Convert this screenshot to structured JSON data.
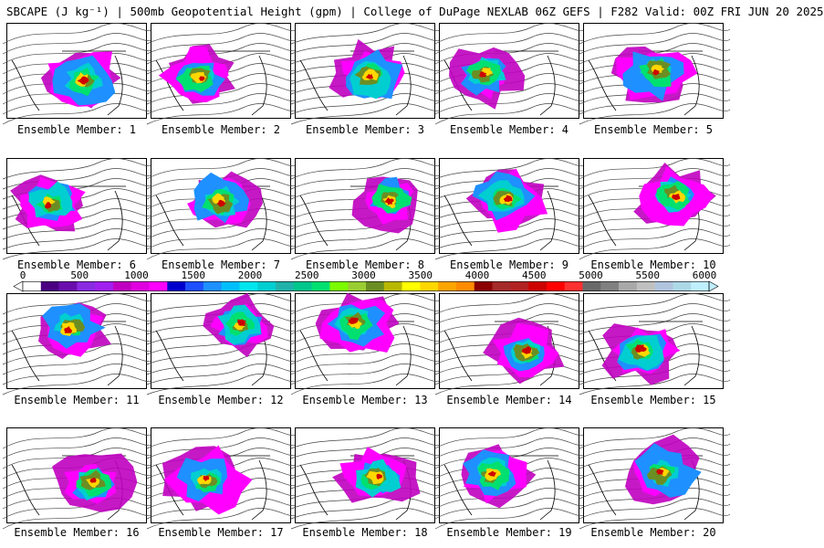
{
  "title": "SBCAPE (J kg⁻¹) | 500mb Geopotential Height (gpm) | College of DuPage NEXLAB 06Z GEFS | F282 Valid: 00Z FRI JUN 20 2025",
  "colorbar": {
    "ticks": [
      "0",
      "500",
      "1000",
      "1500",
      "2000",
      "2500",
      "3000",
      "3500",
      "4000",
      "4500",
      "5000",
      "5500",
      "6000"
    ],
    "colors": [
      "#ffffff",
      "#4b0082",
      "#6a0dad",
      "#8a2be2",
      "#a020f0",
      "#c000c0",
      "#e000e0",
      "#ff00ff",
      "#0000cd",
      "#1e50ff",
      "#1e90ff",
      "#00bfff",
      "#00e5ee",
      "#00ced1",
      "#20b2aa",
      "#00c78c",
      "#00e070",
      "#7cfc00",
      "#9acd32",
      "#6b8e23",
      "#b8b800",
      "#ffff00",
      "#ffd700",
      "#ffa500",
      "#ff8c00",
      "#8b0000",
      "#a52a2a",
      "#b22222",
      "#cd0000",
      "#ff0000",
      "#ff3030",
      "#696969",
      "#808080",
      "#a9a9a9",
      "#c0c0c0",
      "#b0c4de",
      "#add8e6",
      "#bfefff"
    ]
  },
  "panels": [
    {
      "label": "Ensemble Member: 1"
    },
    {
      "label": "Ensemble Member: 2"
    },
    {
      "label": "Ensemble Member: 3"
    },
    {
      "label": "Ensemble Member: 4"
    },
    {
      "label": "Ensemble Member: 5"
    },
    {
      "label": "Ensemble Member: 6"
    },
    {
      "label": "Ensemble Member: 7"
    },
    {
      "label": "Ensemble Member: 8"
    },
    {
      "label": "Ensemble Member: 9"
    },
    {
      "label": "Ensemble Member: 10"
    },
    {
      "label": "Ensemble Member: 11"
    },
    {
      "label": "Ensemble Member: 12"
    },
    {
      "label": "Ensemble Member: 13"
    },
    {
      "label": "Ensemble Member: 14"
    },
    {
      "label": "Ensemble Member: 15"
    },
    {
      "label": "Ensemble Member: 16"
    },
    {
      "label": "Ensemble Member: 17"
    },
    {
      "label": "Ensemble Member: 18"
    },
    {
      "label": "Ensemble Member: 19"
    },
    {
      "label": "Ensemble Member: 20"
    }
  ]
}
